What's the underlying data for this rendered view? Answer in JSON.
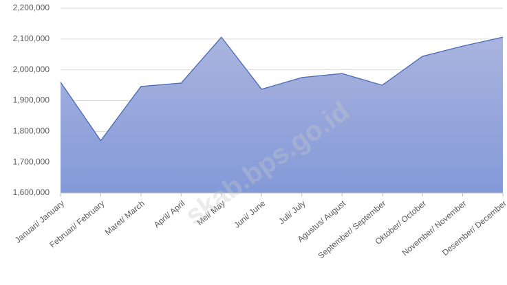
{
  "chart_data": {
    "type": "area",
    "categories": [
      "Januari/ January",
      "Februari/ February",
      "Maret/ March",
      "April/ April",
      "Mei/ May",
      "Juni/ June",
      "Juli/ July",
      "Agustus/ August",
      "September/ September",
      "Oktober/ October",
      "November/ November",
      "Desember/ December"
    ],
    "values": [
      1960000,
      1770000,
      1946000,
      1957000,
      2106000,
      1937000,
      1975000,
      1988000,
      1950000,
      2044000,
      2077000,
      2106000
    ],
    "color": "#4a6ab5",
    "fill_gradient": [
      "#aab4de",
      "#8399d8"
    ],
    "ylim": [
      1600000,
      2200000
    ],
    "yticks": [
      {
        "value": 1600000,
        "label": "1,600,000"
      },
      {
        "value": 1700000,
        "label": "1,700,000"
      },
      {
        "value": 1800000,
        "label": "1,800,000"
      },
      {
        "value": 1900000,
        "label": "1,900,000"
      },
      {
        "value": 2000000,
        "label": "2,000,000"
      },
      {
        "value": 2100000,
        "label": "2,100,000"
      },
      {
        "value": 2200000,
        "label": "2,200,000"
      }
    ],
    "grid": true,
    "watermark": "skab.bps.go.id"
  }
}
